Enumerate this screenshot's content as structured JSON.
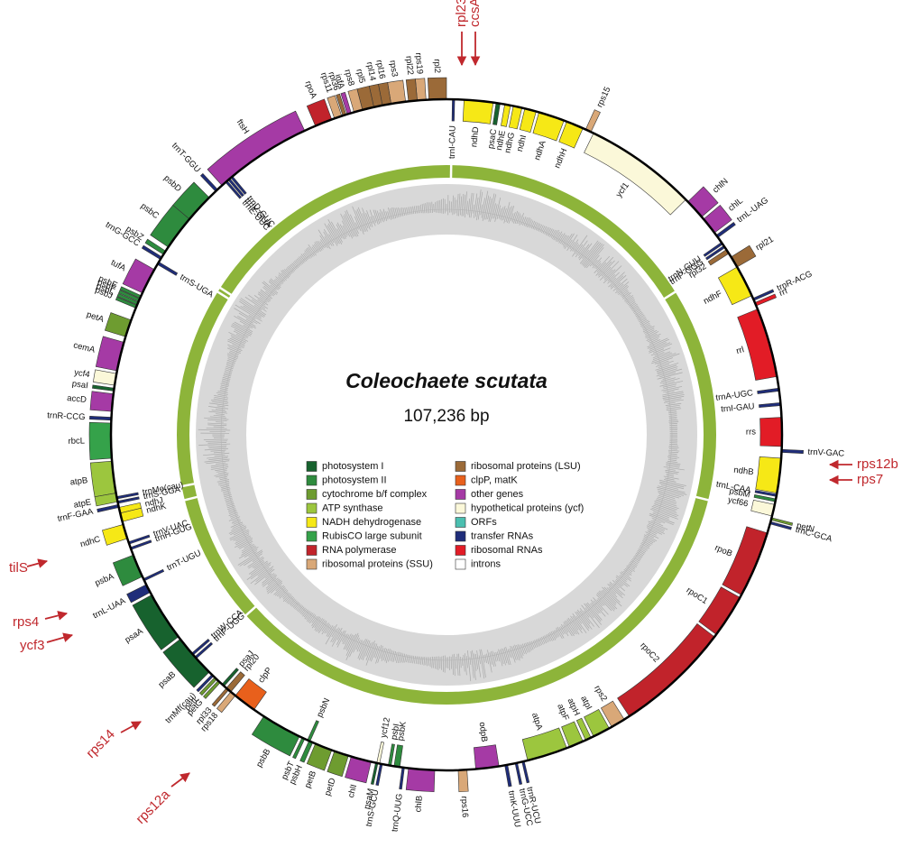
{
  "title": "Coleochaete scutata",
  "size": "107,236 bp",
  "legend": [
    {
      "label": "photosystem I",
      "color": "#17622e"
    },
    {
      "label": "photosystem II",
      "color": "#2e8b3e"
    },
    {
      "label": "cytochrome b/f complex",
      "color": "#6e9c30"
    },
    {
      "label": "ATP synthase",
      "color": "#9cc63e"
    },
    {
      "label": "NADH dehydrogenase",
      "color": "#f6e816"
    },
    {
      "label": "RubisCO large subunit",
      "color": "#35a24a"
    },
    {
      "label": "RNA polymerase",
      "color": "#c1232b"
    },
    {
      "label": "ribosomal proteins (SSU)",
      "color": "#d9a878"
    },
    {
      "label": "ribosomal proteins (LSU)",
      "color": "#9b6a38"
    },
    {
      "label": "clpP, matK",
      "color": "#e8601c"
    },
    {
      "label": "other genes",
      "color": "#a53aa5"
    },
    {
      "label": "hypothetical proteins (ycf)",
      "color": "#fbf8d9"
    },
    {
      "label": "ORFs",
      "color": "#4bbfb0"
    },
    {
      "label": "transfer RNAs",
      "color": "#1f2d7a"
    },
    {
      "label": "ribosomal RNAs",
      "color": "#e21c26"
    },
    {
      "label": "introns",
      "color": "#ffffff"
    }
  ],
  "genes": [
    {
      "name": "rpl2",
      "group": 8
    },
    {
      "name": "rps19",
      "group": 7
    },
    {
      "name": "rpl22",
      "group": 8
    },
    {
      "name": "rps3",
      "group": 7
    },
    {
      "name": "rpl16",
      "group": 8
    },
    {
      "name": "rpl14",
      "group": 8
    },
    {
      "name": "rpl5",
      "group": 8
    },
    {
      "name": "rps8",
      "group": 7
    },
    {
      "name": "infA",
      "group": 10
    },
    {
      "name": "rpl36",
      "group": 8
    },
    {
      "name": "rps11",
      "group": 7
    },
    {
      "name": "rpoA",
      "group": 6
    },
    {
      "name": "ftsH",
      "group": 10
    },
    {
      "name": "trnT-GGU",
      "group": 13
    },
    {
      "name": "trnD-GUC",
      "group": 13
    },
    {
      "name": "trnY-GUA",
      "group": 13
    },
    {
      "name": "trnE-UUC",
      "group": 13
    },
    {
      "name": "psbD",
      "group": 1
    },
    {
      "name": "psbC",
      "group": 1
    },
    {
      "name": "psbZ",
      "group": 1
    },
    {
      "name": "trnG-GCC",
      "group": 13
    },
    {
      "name": "trnS-UGA",
      "group": 13
    },
    {
      "name": "tufA",
      "group": 10
    },
    {
      "name": "psbE",
      "group": 1
    },
    {
      "name": "psbF",
      "group": 1
    },
    {
      "name": "psbL",
      "group": 1
    },
    {
      "name": "psbJ",
      "group": 1
    },
    {
      "name": "petA",
      "group": 2
    },
    {
      "name": "cemA",
      "group": 10
    },
    {
      "name": "ycf4",
      "group": 11
    },
    {
      "name": "psaI",
      "group": 0
    },
    {
      "name": "accD",
      "group": 10
    },
    {
      "name": "trnR-CCG",
      "group": 13
    },
    {
      "name": "rbcL",
      "group": 5
    },
    {
      "name": "atpB",
      "group": 3
    },
    {
      "name": "atpE",
      "group": 3
    },
    {
      "name": "trnF-GAA",
      "group": 13
    },
    {
      "name": "trnMe(cau)",
      "group": 13
    },
    {
      "name": "trnS-GGA",
      "group": 13
    },
    {
      "name": "ndhJ",
      "group": 4
    },
    {
      "name": "ndhK",
      "group": 4
    },
    {
      "name": "ndhC",
      "group": 4
    },
    {
      "name": "trnV-UAC",
      "group": 13
    },
    {
      "name": "trnH-GUG",
      "group": 13
    },
    {
      "name": "psbA",
      "group": 1
    },
    {
      "name": "trnT-UGU",
      "group": 13
    },
    {
      "name": "trnL-UAA",
      "group": 13
    },
    {
      "name": "psaA",
      "group": 0
    },
    {
      "name": "psaB",
      "group": 0
    },
    {
      "name": "trnW-CCA",
      "group": 13
    },
    {
      "name": "trnP-UGG",
      "group": 13
    },
    {
      "name": "trnMf(cau)",
      "group": 13
    },
    {
      "name": "petL",
      "group": 2
    },
    {
      "name": "petG",
      "group": 2
    },
    {
      "name": "psaJ",
      "group": 0
    },
    {
      "name": "rpl20",
      "group": 8
    },
    {
      "name": "clpP",
      "group": 9
    },
    {
      "name": "rpl33",
      "group": 8
    },
    {
      "name": "rps18",
      "group": 7
    },
    {
      "name": "psbB",
      "group": 1
    },
    {
      "name": "psbT",
      "group": 1
    },
    {
      "name": "psbN",
      "group": 1
    },
    {
      "name": "psbH",
      "group": 1
    },
    {
      "name": "petB",
      "group": 2
    },
    {
      "name": "petD",
      "group": 2
    },
    {
      "name": "chlI",
      "group": 10
    },
    {
      "name": "psaM",
      "group": 0
    },
    {
      "name": "trnS-GCU",
      "group": 13
    },
    {
      "name": "ycf12",
      "group": 11
    },
    {
      "name": "psbI",
      "group": 1
    },
    {
      "name": "psbK",
      "group": 1
    },
    {
      "name": "trnQ-UUG",
      "group": 13
    },
    {
      "name": "chlB",
      "group": 10
    },
    {
      "name": "rps16",
      "group": 7
    },
    {
      "name": "odpB",
      "group": 10
    },
    {
      "name": "trnK-UUU",
      "group": 13
    },
    {
      "name": "trnG-UCC",
      "group": 13
    },
    {
      "name": "trnR-UCU",
      "group": 13
    },
    {
      "name": "atpA",
      "group": 3
    },
    {
      "name": "atpF",
      "group": 3
    },
    {
      "name": "atpH",
      "group": 3
    },
    {
      "name": "atpI",
      "group": 3
    },
    {
      "name": "rps2",
      "group": 7
    },
    {
      "name": "rpoC2",
      "group": 6
    },
    {
      "name": "rpoC1",
      "group": 6
    },
    {
      "name": "rpoB",
      "group": 6
    },
    {
      "name": "petN",
      "group": 2
    },
    {
      "name": "trnC-GCA",
      "group": 13
    },
    {
      "name": "ycf66",
      "group": 11
    },
    {
      "name": "psbM",
      "group": 1
    },
    {
      "name": "trnL-CAA",
      "group": 13
    },
    {
      "name": "ndhB",
      "group": 4
    },
    {
      "name": "trnV-GAC",
      "group": 13
    },
    {
      "name": "rrs",
      "group": 14
    },
    {
      "name": "trnI-GAU",
      "group": 13
    },
    {
      "name": "trnA-UGC",
      "group": 13
    },
    {
      "name": "rrl",
      "group": 14
    },
    {
      "name": "rrf",
      "group": 14
    },
    {
      "name": "trnR-ACG",
      "group": 13
    },
    {
      "name": "ndhF",
      "group": 4
    },
    {
      "name": "rpl21",
      "group": 8
    },
    {
      "name": "rpl32",
      "group": 8
    },
    {
      "name": "trnP-GGG",
      "group": 13
    },
    {
      "name": "trnN-GUU",
      "group": 13
    },
    {
      "name": "trnL-UAG",
      "group": 13
    },
    {
      "name": "chlL",
      "group": 10
    },
    {
      "name": "chlN",
      "group": 10
    },
    {
      "name": "ycf1",
      "group": 11
    },
    {
      "name": "rps15",
      "group": 7
    },
    {
      "name": "ndhH",
      "group": 4
    },
    {
      "name": "ndhA",
      "group": 4
    },
    {
      "name": "ndhI",
      "group": 4
    },
    {
      "name": "ndhG",
      "group": 4
    },
    {
      "name": "ndhE",
      "group": 4
    },
    {
      "name": "psaC",
      "group": 0
    },
    {
      "name": "ndhD",
      "group": 4
    },
    {
      "name": "trnI-CAU",
      "group": 13
    }
  ],
  "annotations": [
    "rpl23",
    "ccsA",
    "rps12b",
    "rps7",
    "tilS",
    "rps4",
    "ycf3",
    "rps14",
    "rps12a"
  ]
}
